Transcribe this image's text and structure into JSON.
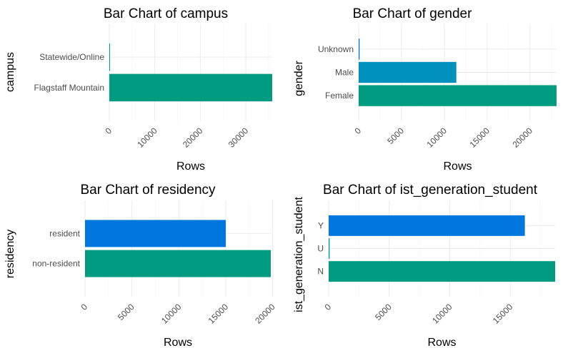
{
  "colors": {
    "first": "#009B81",
    "second": "#0091BD",
    "third": "#0077DF",
    "grid": "#EBEBEB"
  },
  "chart_data": [
    {
      "type": "bar",
      "orientation": "horizontal",
      "title": "Bar Chart of campus",
      "xlabel": "Rows",
      "ylabel": "campus",
      "categories": [
        "Flagstaff Mountain",
        "Statewide/Online"
      ],
      "values": [
        35800,
        130
      ],
      "bar_colors": [
        "#009B81",
        "#0091BD"
      ],
      "xlim": [
        0,
        35800
      ],
      "xticks": [
        0,
        10000,
        20000,
        30000
      ],
      "grid": true
    },
    {
      "type": "bar",
      "orientation": "horizontal",
      "title": "Bar Chart of gender",
      "xlabel": "Rows",
      "ylabel": "gender",
      "categories": [
        "Female",
        "Male",
        "Unknown"
      ],
      "values": [
        23100,
        11400,
        110
      ],
      "bar_colors": [
        "#009B81",
        "#0091BD",
        "#0077DF"
      ],
      "xlim": [
        0,
        23100
      ],
      "xticks": [
        0,
        5000,
        10000,
        15000,
        20000
      ],
      "grid": true
    },
    {
      "type": "bar",
      "orientation": "horizontal",
      "title": "Bar Chart of residency",
      "xlabel": "Rows",
      "ylabel": "residency",
      "categories": [
        "non-resident",
        "resident"
      ],
      "values": [
        19800,
        15000
      ],
      "bar_colors": [
        "#009B81",
        "#0077DF"
      ],
      "xlim": [
        0,
        19800
      ],
      "xticks": [
        0,
        5000,
        10000,
        15000,
        20000
      ],
      "grid": true
    },
    {
      "type": "bar",
      "orientation": "horizontal",
      "title": "Bar Chart of ist_generation_student",
      "xlabel": "Rows",
      "ylabel": "ist_generation_student",
      "categories": [
        "N",
        "U",
        "Y"
      ],
      "values": [
        18700,
        80,
        16200
      ],
      "bar_colors": [
        "#009B81",
        "#0091BD",
        "#0077DF"
      ],
      "xlim": [
        0,
        18700
      ],
      "xticks": [
        0,
        5000,
        10000,
        15000
      ],
      "grid": true
    }
  ]
}
